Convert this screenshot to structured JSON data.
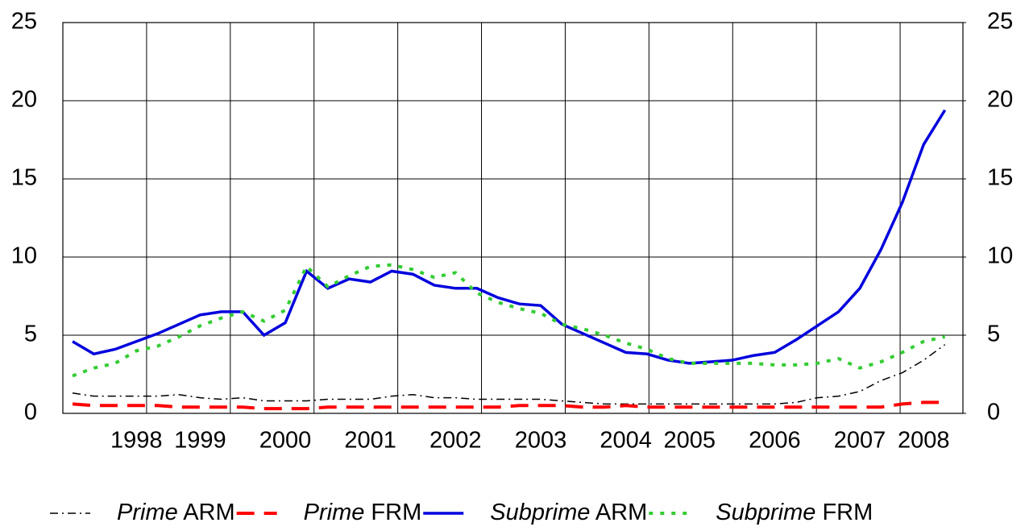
{
  "chart_data": {
    "type": "line",
    "categories": [
      null,
      null,
      null,
      "1998",
      null,
      null,
      "1999",
      null,
      null,
      null,
      "2000",
      null,
      null,
      null,
      "2001",
      null,
      null,
      null,
      "2002",
      null,
      null,
      null,
      "2003",
      null,
      null,
      null,
      "2004",
      null,
      null,
      "2005",
      null,
      null,
      null,
      "2006",
      null,
      null,
      null,
      "2007",
      null,
      null,
      "2008",
      null
    ],
    "series": [
      {
        "name": "Prime ARM",
        "color": "#000000",
        "line_style": "dashdot",
        "values": [
          1.3,
          1.1,
          1.1,
          1.1,
          1.1,
          1.2,
          1.0,
          0.9,
          1.0,
          0.8,
          0.8,
          0.8,
          0.9,
          0.9,
          0.9,
          1.1,
          1.2,
          1.0,
          1.0,
          0.9,
          0.9,
          0.9,
          0.9,
          0.8,
          0.7,
          0.6,
          0.6,
          0.6,
          0.6,
          0.6,
          0.6,
          0.6,
          0.6,
          0.6,
          0.7,
          1.0,
          1.1,
          1.4,
          2.1,
          2.6,
          3.4,
          4.4
        ]
      },
      {
        "name": "Prime FRM",
        "color": "#ff0000",
        "line_style": "dashed",
        "values": [
          0.6,
          0.5,
          0.5,
          0.5,
          0.5,
          0.4,
          0.4,
          0.4,
          0.4,
          0.3,
          0.3,
          0.3,
          0.4,
          0.4,
          0.4,
          0.4,
          0.4,
          0.4,
          0.4,
          0.4,
          0.4,
          0.5,
          0.5,
          0.5,
          0.4,
          0.4,
          0.5,
          0.4,
          0.4,
          0.4,
          0.4,
          0.4,
          0.4,
          0.4,
          0.4,
          0.4,
          0.4,
          0.4,
          0.4,
          0.6,
          0.7,
          0.7
        ]
      },
      {
        "name": "Subprime ARM",
        "color": "#0000dd",
        "line_style": "solid",
        "values": [
          4.6,
          3.8,
          4.1,
          4.6,
          5.1,
          5.7,
          6.3,
          6.5,
          6.5,
          5.0,
          5.8,
          9.1,
          8.0,
          8.6,
          8.4,
          9.1,
          8.9,
          8.2,
          8.0,
          8.0,
          7.4,
          7.0,
          6.9,
          5.7,
          5.1,
          4.5,
          3.9,
          3.8,
          3.4,
          3.2,
          3.3,
          3.4,
          3.7,
          3.9,
          4.7,
          5.6,
          6.5,
          8.0,
          10.5,
          13.5,
          17.2,
          19.4
        ]
      },
      {
        "name": "Subprime FRM",
        "color": "#33cc33",
        "line_style": "dotted",
        "values": [
          2.4,
          2.9,
          3.2,
          4.0,
          4.3,
          4.9,
          5.6,
          6.1,
          6.5,
          5.9,
          6.6,
          9.4,
          8.1,
          8.8,
          9.4,
          9.5,
          9.2,
          8.7,
          9.0,
          7.7,
          7.1,
          6.7,
          6.4,
          5.7,
          5.4,
          5.0,
          4.5,
          4.1,
          3.5,
          3.2,
          3.2,
          3.2,
          3.2,
          3.1,
          3.1,
          3.2,
          3.5,
          2.9,
          3.3,
          3.9,
          4.6,
          4.9
        ]
      }
    ],
    "ylim": [
      0,
      25
    ],
    "yticks": [
      0,
      5,
      10,
      15,
      20,
      25
    ],
    "y2lim": [
      0,
      25
    ],
    "y2ticks": [
      0,
      5,
      10,
      15,
      20,
      25
    ],
    "grid": true,
    "legend": "bottom"
  }
}
